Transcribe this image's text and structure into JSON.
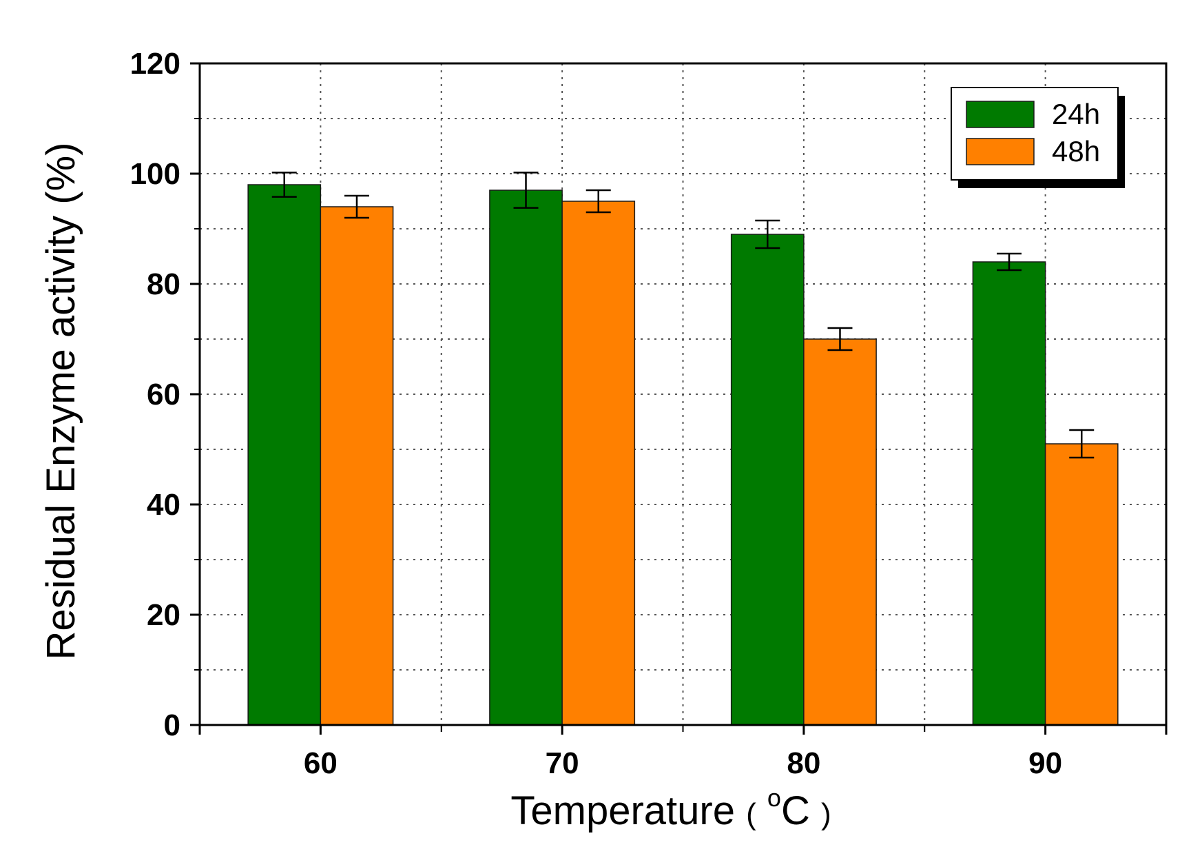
{
  "chart_data": {
    "type": "bar",
    "title": "",
    "xlabel": "Temperature",
    "xlabel_unit": {
      "open": "(",
      "superscript": "o",
      "unit": "C",
      "close": ")"
    },
    "ylabel": "Residual Enzyme activity (%)",
    "ylim": [
      0,
      120
    ],
    "yticks": [
      0,
      20,
      40,
      60,
      80,
      100,
      120
    ],
    "categories": [
      "60",
      "70",
      "80",
      "90"
    ],
    "grid": true,
    "legend_position": "top-right",
    "series": [
      {
        "name": "24h",
        "color": "#007a00",
        "values": [
          98,
          97,
          89,
          84
        ],
        "errors": [
          2.2,
          3.2,
          2.5,
          1.5
        ]
      },
      {
        "name": "48h",
        "color": "#ff8000",
        "values": [
          94,
          95,
          70,
          51
        ],
        "errors": [
          2,
          2,
          2,
          2.5
        ]
      }
    ]
  }
}
